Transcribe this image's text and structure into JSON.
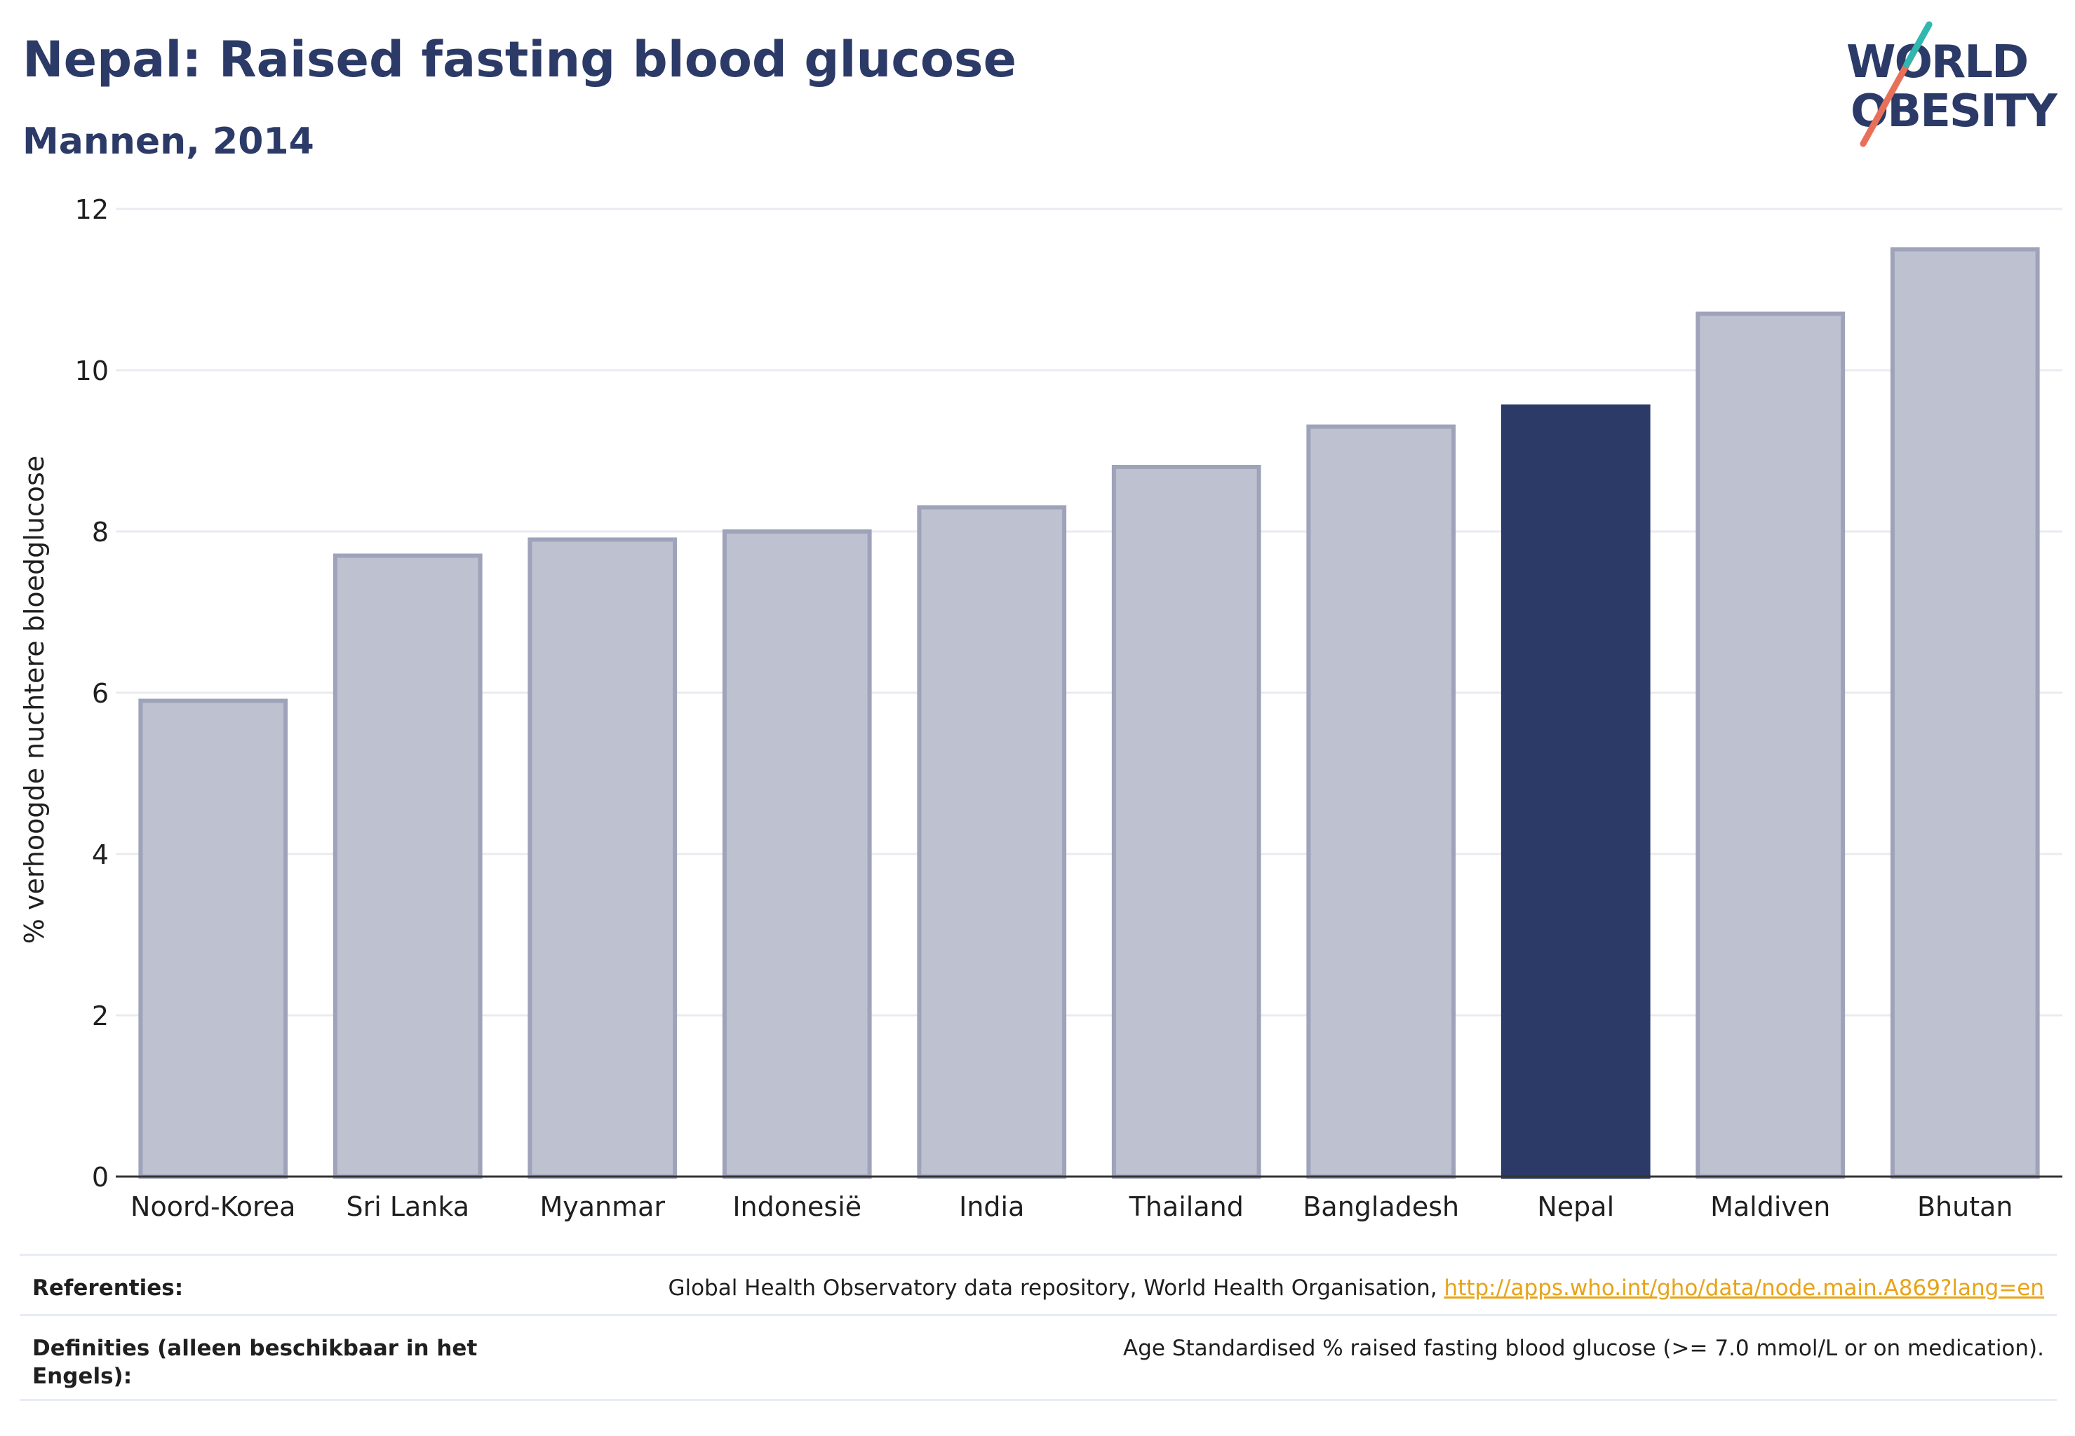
{
  "header": {
    "title": "Nepal: Raised fasting blood glucose",
    "subtitle": "Mannen, 2014"
  },
  "logo": {
    "line1": "WORLD",
    "line2": "OBESITY"
  },
  "colors": {
    "highlight": "#2b3a67",
    "bar_fill": "#bec1cf",
    "bar_stroke": "#9ea3ba",
    "grid": "#e9ebf0",
    "text": "#1f1f1f",
    "link": "#e8a317"
  },
  "chart_data": {
    "type": "bar",
    "title": "Nepal: Raised fasting blood glucose",
    "subtitle": "Mannen, 2014",
    "ylabel": "% verhoogde nuchtere bloedglucose",
    "xlabel": "",
    "ylim": [
      0,
      12
    ],
    "yticks": [
      0,
      2,
      4,
      6,
      8,
      10,
      12
    ],
    "grid": true,
    "categories": [
      "Noord-Korea",
      "Sri Lanka",
      "Myanmar",
      "Indonesië",
      "India",
      "Thailand",
      "Bangladesh",
      "Nepal",
      "Maldiven",
      "Bhutan"
    ],
    "values": [
      5.9,
      7.7,
      7.9,
      8.0,
      8.3,
      8.8,
      9.3,
      9.55,
      10.7,
      11.5
    ],
    "highlight": "Nepal"
  },
  "references": {
    "ref_label": "Referenties:",
    "ref_text": "Global Health Observatory data repository, World Health Organisation, ",
    "ref_link": "http://apps.who.int/gho/data/node.main.A869?lang=en",
    "def_label": "Definities (alleen beschikbaar in het Engels):",
    "def_text": "Age Standardised % raised fasting blood glucose (>= 7.0 mmol/L or on medication)."
  }
}
